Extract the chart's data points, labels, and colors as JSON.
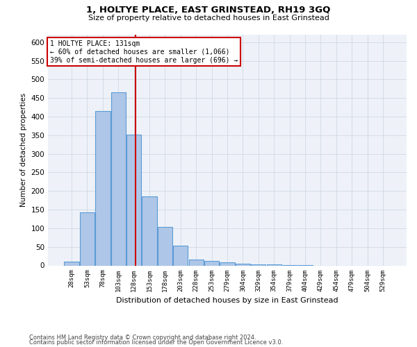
{
  "title": "1, HOLTYE PLACE, EAST GRINSTEAD, RH19 3GQ",
  "subtitle": "Size of property relative to detached houses in East Grinstead",
  "xlabel": "Distribution of detached houses by size in East Grinstead",
  "ylabel": "Number of detached properties",
  "bar_labels": [
    "28sqm",
    "53sqm",
    "78sqm",
    "103sqm",
    "128sqm",
    "153sqm",
    "178sqm",
    "203sqm",
    "228sqm",
    "253sqm",
    "279sqm",
    "304sqm",
    "329sqm",
    "354sqm",
    "379sqm",
    "404sqm",
    "429sqm",
    "454sqm",
    "479sqm",
    "504sqm",
    "529sqm"
  ],
  "bar_values": [
    10,
    143,
    415,
    465,
    352,
    185,
    103,
    53,
    16,
    12,
    9,
    5,
    3,
    2,
    1,
    1,
    0,
    0,
    0,
    0,
    0
  ],
  "bar_color": "#aec6e8",
  "bar_edge_color": "#5b9bd5",
  "grid_color": "#d0d8e4",
  "background_color": "#eef2f8",
  "marker_color": "#cc0000",
  "annotation_line1": "1 HOLTYE PLACE: 131sqm",
  "annotation_line2": "← 60% of detached houses are smaller (1,066)",
  "annotation_line3": "39% of semi-detached houses are larger (696) →",
  "annotation_box_color": "#cc0000",
  "ylim": [
    0,
    620
  ],
  "yticks": [
    0,
    50,
    100,
    150,
    200,
    250,
    300,
    350,
    400,
    450,
    500,
    550,
    600
  ],
  "footnote1": "Contains HM Land Registry data © Crown copyright and database right 2024.",
  "footnote2": "Contains public sector information licensed under the Open Government Licence v3.0."
}
